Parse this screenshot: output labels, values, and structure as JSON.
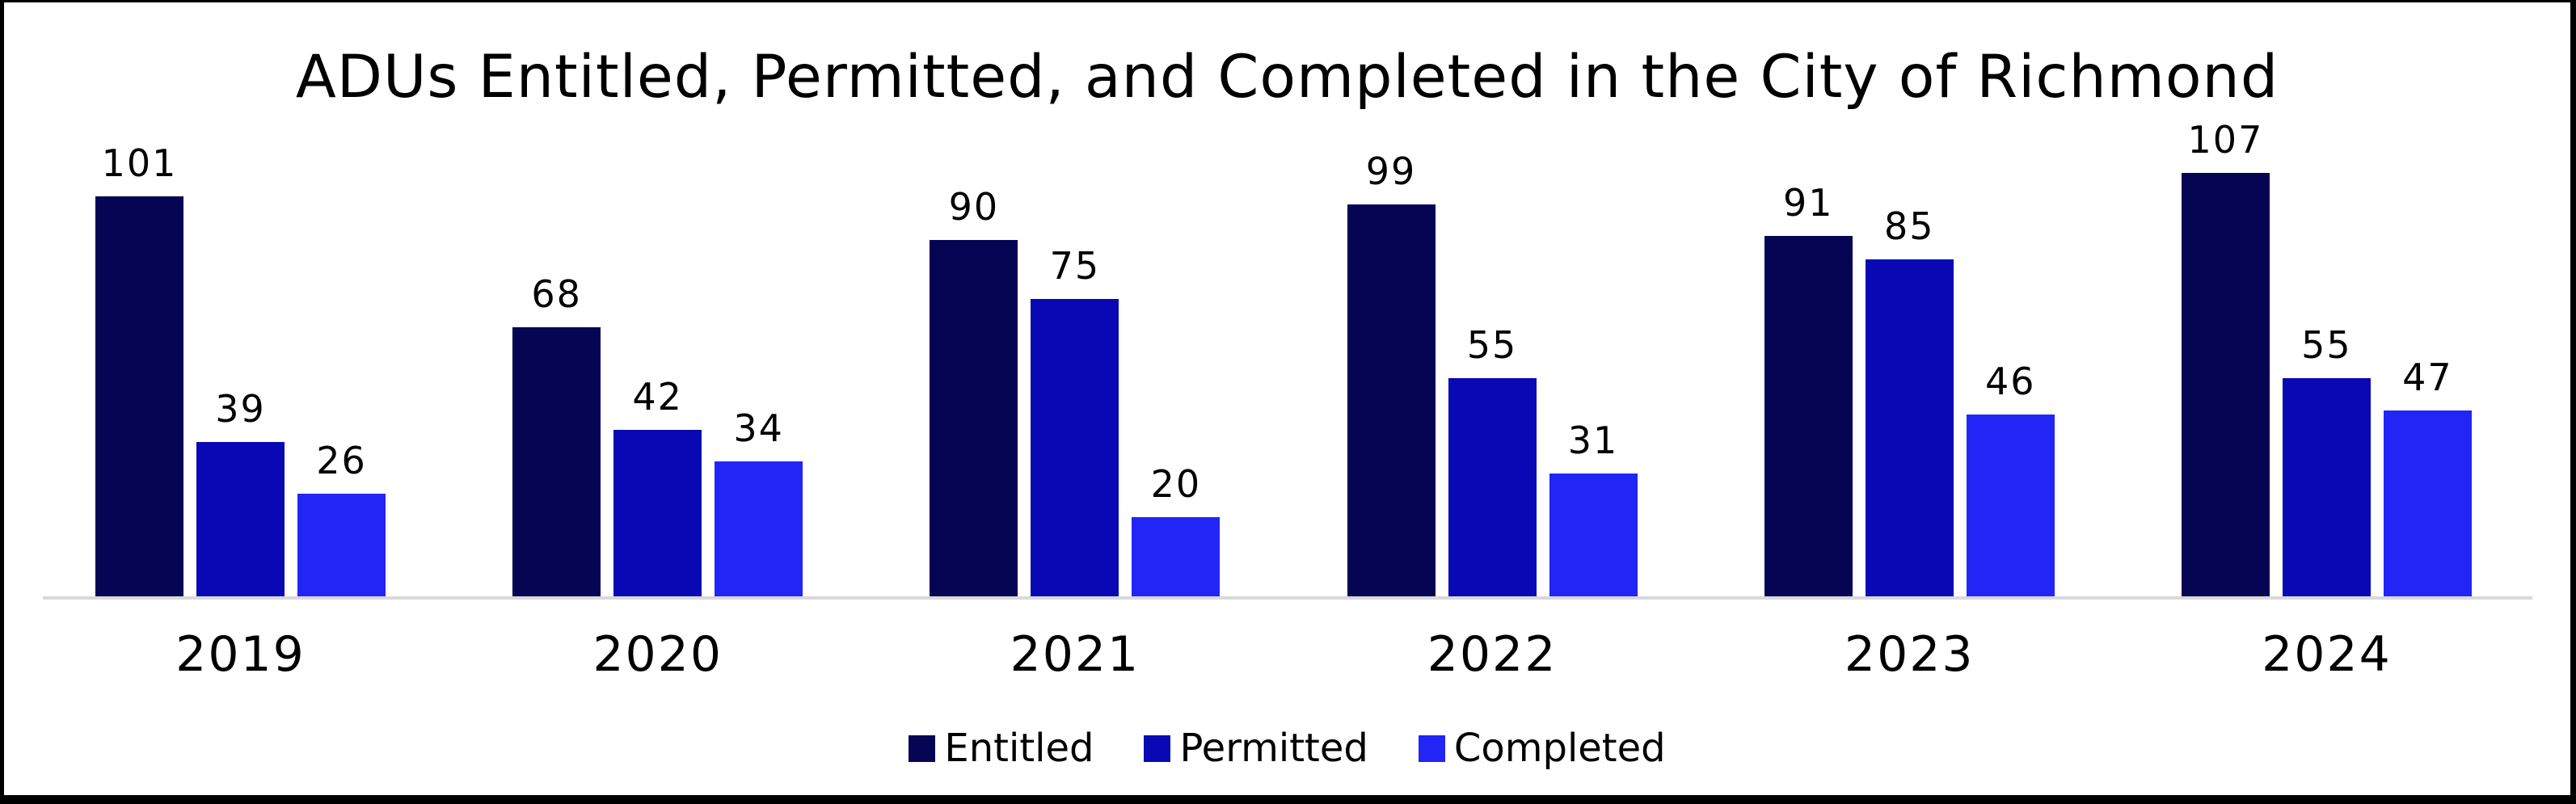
{
  "chart_data": {
    "type": "bar",
    "title": "ADUs Entitled, Permitted, and Completed in the City of Richmond",
    "categories": [
      "2019",
      "2020",
      "2021",
      "2022",
      "2023",
      "2024"
    ],
    "series": [
      {
        "name": "Entitled",
        "color": "#050554",
        "values": [
          101,
          68,
          90,
          99,
          91,
          107
        ]
      },
      {
        "name": "Permitted",
        "color": "#0808B5",
        "values": [
          39,
          42,
          75,
          55,
          85,
          55
        ]
      },
      {
        "name": "Completed",
        "color": "#2325F6",
        "values": [
          26,
          34,
          20,
          31,
          46,
          47
        ]
      }
    ],
    "value_labels_shown": true,
    "legend_position": "bottom",
    "legend_labels": [
      "Entitled",
      "Permitted",
      "Completed"
    ],
    "grid": false,
    "xlabel": "",
    "ylabel": "",
    "ylim": [
      0,
      110
    ],
    "axis_line_color": "#D9D9D9",
    "background_color": "#FFFFFF",
    "frame_color": "#000000",
    "text_color": "#000000"
  }
}
